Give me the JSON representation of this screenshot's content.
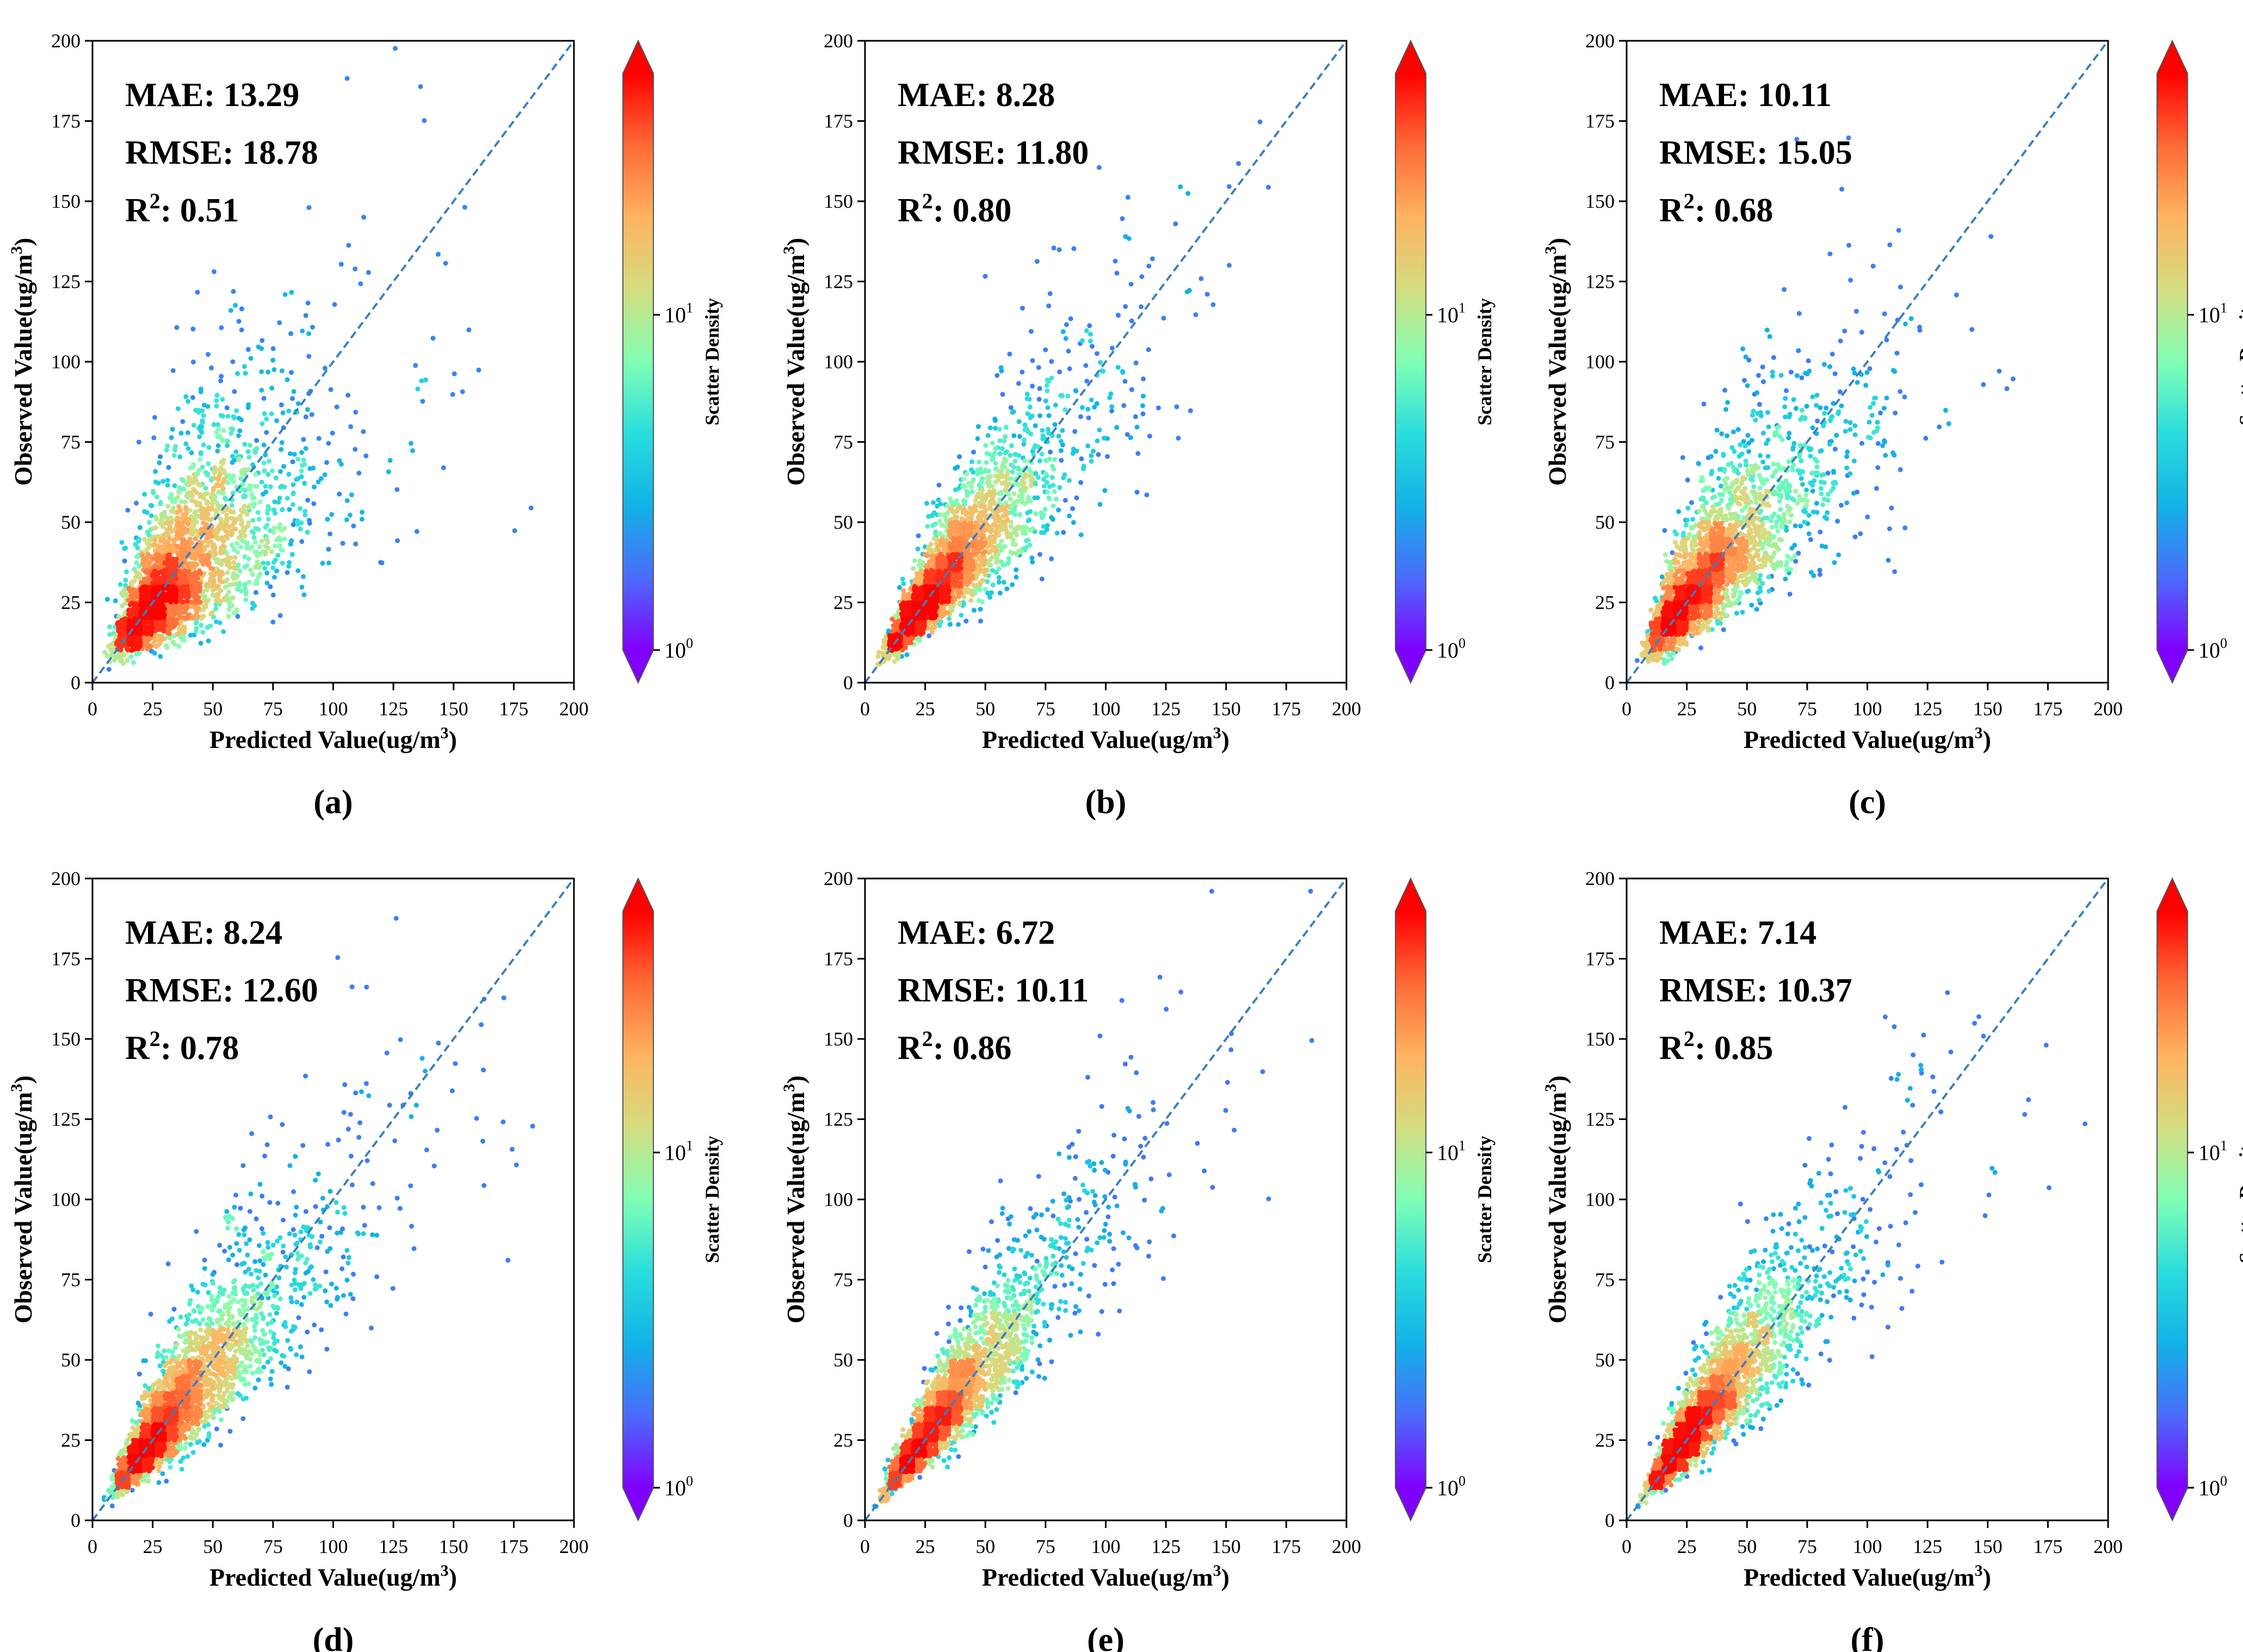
{
  "chart_data": [
    {
      "type": "scatter",
      "panel_label": "(a)",
      "xlabel": "Predicted Value(ug/m",
      "ylabel": "Observed Value(ug/m",
      "unit_superscript": "3",
      "unit_close": ")",
      "xlim": [
        0,
        200
      ],
      "ylim": [
        0,
        200
      ],
      "xticks": [
        0,
        25,
        50,
        75,
        100,
        125,
        150,
        175,
        200
      ],
      "yticks": [
        0,
        25,
        50,
        75,
        100,
        125,
        150,
        175,
        200
      ],
      "reference_line": "y = x",
      "metrics": [
        {
          "label": "MAE: ",
          "value": "13.29"
        },
        {
          "label": "RMSE: ",
          "value": "18.78"
        },
        {
          "label": "R",
          "sup": "2",
          "suffix": ": ",
          "value": "0.51"
        }
      ],
      "colorbar": {
        "label": "Scatter Density",
        "scale": "log",
        "ticks": [
          {
            "base": "10",
            "exp": "0",
            "value": 1
          },
          {
            "base": "10",
            "exp": "1",
            "value": 10
          }
        ]
      },
      "distribution": {
        "center_x": 35,
        "center_y": 33,
        "spread_x": 20,
        "spread_y": 21,
        "correlation": 0.72
      }
    },
    {
      "type": "scatter",
      "panel_label": "(b)",
      "xlabel": "Predicted Value(ug/m",
      "ylabel": "Observed Value(ug/m",
      "unit_superscript": "3",
      "unit_close": ")",
      "xlim": [
        0,
        200
      ],
      "ylim": [
        0,
        200
      ],
      "xticks": [
        0,
        25,
        50,
        75,
        100,
        125,
        150,
        175,
        200
      ],
      "yticks": [
        0,
        25,
        50,
        75,
        100,
        125,
        150,
        175,
        200
      ],
      "reference_line": "y = x",
      "metrics": [
        {
          "label": "MAE: ",
          "value": "8.28"
        },
        {
          "label": "RMSE: ",
          "value": "11.80"
        },
        {
          "label": "R",
          "sup": "2",
          "suffix": ": ",
          "value": "0.80"
        }
      ],
      "colorbar": {
        "label": "Scatter Density",
        "scale": "log",
        "ticks": [
          {
            "base": "10",
            "exp": "0",
            "value": 1
          },
          {
            "base": "10",
            "exp": "1",
            "value": 10
          }
        ]
      },
      "distribution": {
        "center_x": 33,
        "center_y": 33,
        "spread_x": 22,
        "spread_y": 24,
        "correlation": 0.9
      }
    },
    {
      "type": "scatter",
      "panel_label": "(c)",
      "xlabel": "Predicted Value(ug/m",
      "ylabel": "Observed Value(ug/m",
      "unit_superscript": "3",
      "unit_close": ")",
      "xlim": [
        0,
        200
      ],
      "ylim": [
        0,
        200
      ],
      "xticks": [
        0,
        25,
        50,
        75,
        100,
        125,
        150,
        175,
        200
      ],
      "yticks": [
        0,
        25,
        50,
        75,
        100,
        125,
        150,
        175,
        200
      ],
      "reference_line": "y = x",
      "metrics": [
        {
          "label": "MAE: ",
          "value": "10.11"
        },
        {
          "label": "RMSE: ",
          "value": "15.05"
        },
        {
          "label": "R",
          "sup": "2",
          "suffix": ": ",
          "value": "0.68"
        }
      ],
      "colorbar": {
        "label": "Scatter Density",
        "scale": "log",
        "ticks": [
          {
            "base": "10",
            "exp": "0",
            "value": 1
          },
          {
            "base": "10",
            "exp": "1",
            "value": 10
          }
        ]
      },
      "distribution": {
        "center_x": 33,
        "center_y": 33,
        "spread_x": 21,
        "spread_y": 23,
        "correlation": 0.83
      }
    },
    {
      "type": "scatter",
      "panel_label": "(d)",
      "xlabel": "Predicted Value(ug/m",
      "ylabel": "Observed Value(ug/m",
      "unit_superscript": "3",
      "unit_close": ")",
      "xlim": [
        0,
        200
      ],
      "ylim": [
        0,
        200
      ],
      "xticks": [
        0,
        25,
        50,
        75,
        100,
        125,
        150,
        175,
        200
      ],
      "yticks": [
        0,
        25,
        50,
        75,
        100,
        125,
        150,
        175,
        200
      ],
      "reference_line": "y = x",
      "metrics": [
        {
          "label": "MAE: ",
          "value": "8.24"
        },
        {
          "label": "RMSE: ",
          "value": "12.60"
        },
        {
          "label": "R",
          "sup": "2",
          "suffix": ": ",
          "value": "0.78"
        }
      ],
      "colorbar": {
        "label": "Scatter Density",
        "scale": "log",
        "ticks": [
          {
            "base": "10",
            "exp": "0",
            "value": 1
          },
          {
            "base": "10",
            "exp": "1",
            "value": 10
          }
        ]
      },
      "distribution": {
        "center_x": 35,
        "center_y": 35,
        "spread_x": 25,
        "spread_y": 26,
        "correlation": 0.89
      }
    },
    {
      "type": "scatter",
      "panel_label": "(e)",
      "xlabel": "Predicted Value(ug/m",
      "ylabel": "Observed Value(ug/m",
      "unit_superscript": "3",
      "unit_close": ")",
      "xlim": [
        0,
        200
      ],
      "ylim": [
        0,
        200
      ],
      "xticks": [
        0,
        25,
        50,
        75,
        100,
        125,
        150,
        175,
        200
      ],
      "yticks": [
        0,
        25,
        50,
        75,
        100,
        125,
        150,
        175,
        200
      ],
      "reference_line": "y = x",
      "metrics": [
        {
          "label": "MAE: ",
          "value": "6.72"
        },
        {
          "label": "RMSE: ",
          "value": "10.11"
        },
        {
          "label": "R",
          "sup": "2",
          "suffix": ": ",
          "value": "0.86"
        }
      ],
      "colorbar": {
        "label": "Scatter Density",
        "scale": "log",
        "ticks": [
          {
            "base": "10",
            "exp": "0",
            "value": 1
          },
          {
            "base": "10",
            "exp": "1",
            "value": 10
          }
        ]
      },
      "distribution": {
        "center_x": 33,
        "center_y": 34,
        "spread_x": 22,
        "spread_y": 25,
        "correlation": 0.93
      }
    },
    {
      "type": "scatter",
      "panel_label": "(f)",
      "xlabel": "Predicted Value(ug/m",
      "ylabel": "Observed Value(ug/m",
      "unit_superscript": "3",
      "unit_close": ")",
      "xlim": [
        0,
        200
      ],
      "ylim": [
        0,
        200
      ],
      "xticks": [
        0,
        25,
        50,
        75,
        100,
        125,
        150,
        175,
        200
      ],
      "yticks": [
        0,
        25,
        50,
        75,
        100,
        125,
        150,
        175,
        200
      ],
      "reference_line": "y = x",
      "metrics": [
        {
          "label": "MAE: ",
          "value": "7.14"
        },
        {
          "label": "RMSE: ",
          "value": "10.37"
        },
        {
          "label": "R",
          "sup": "2",
          "suffix": ": ",
          "value": "0.85"
        }
      ],
      "colorbar": {
        "label": "Scatter Density",
        "scale": "log",
        "ticks": [
          {
            "base": "10",
            "exp": "0",
            "value": 1
          },
          {
            "base": "10",
            "exp": "1",
            "value": 10
          }
        ]
      },
      "distribution": {
        "center_x": 33,
        "center_y": 34,
        "spread_x": 22,
        "spread_y": 25,
        "correlation": 0.92
      }
    }
  ],
  "colors": {
    "axis": "#000000",
    "reference_line": "#3a7fbf",
    "colormap": [
      "#8000ff",
      "#4a6cfb",
      "#12b2e6",
      "#2adddd",
      "#80ffb4",
      "#d4dd80",
      "#ffb360",
      "#ff6a36",
      "#ff0000"
    ]
  }
}
